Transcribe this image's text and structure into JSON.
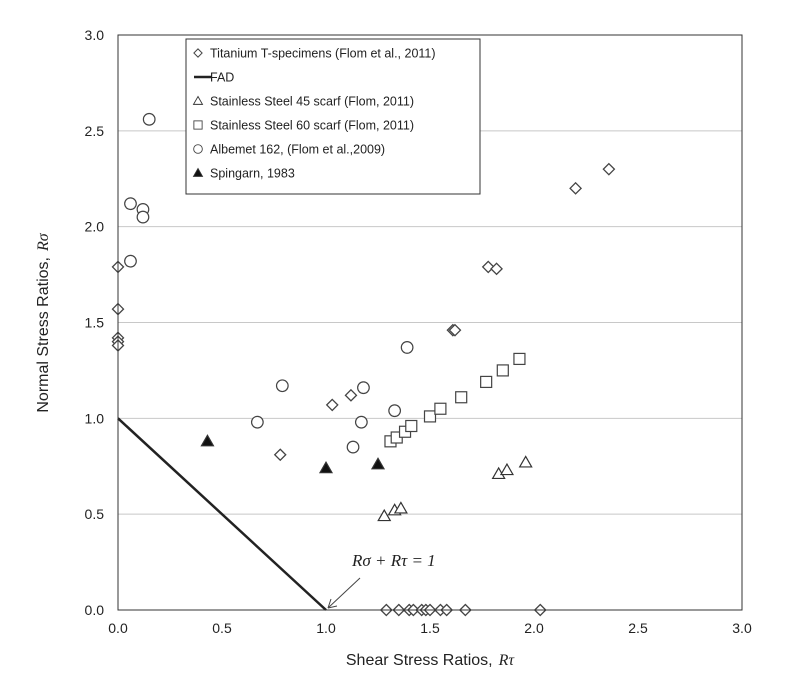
{
  "chart_data": {
    "type": "scatter",
    "xlabel": "Shear Stress Ratios,",
    "xlabel_symbol": "Rτ",
    "ylabel": "Normal Stress Ratios,",
    "ylabel_symbol": "Rσ",
    "xlim": [
      0.0,
      3.0
    ],
    "ylim": [
      0.0,
      3.0
    ],
    "xticks": [
      "0.0",
      "0.5",
      "1.0",
      "1.5",
      "2.0",
      "2.5",
      "3.0"
    ],
    "yticks": [
      "0.0",
      "0.5",
      "1.0",
      "1.5",
      "2.0",
      "2.5",
      "3.0"
    ],
    "grid": "horizontal",
    "legend_position": "top-left",
    "annotation": {
      "text": "Rσ + Rτ = 1",
      "points_to": [
        1.0,
        0.0
      ]
    },
    "series": [
      {
        "name": "Titanium T-specimens (Flom et al., 2011)",
        "marker": "diamond-open",
        "points": [
          [
            0.0,
            1.79
          ],
          [
            0.0,
            1.57
          ],
          [
            0.0,
            1.42
          ],
          [
            0.0,
            1.4
          ],
          [
            0.0,
            1.38
          ],
          [
            0.78,
            0.81
          ],
          [
            1.03,
            1.07
          ],
          [
            1.12,
            1.12
          ],
          [
            1.61,
            1.46
          ],
          [
            1.62,
            1.46
          ],
          [
            1.78,
            1.79
          ],
          [
            1.82,
            1.78
          ],
          [
            2.2,
            2.2
          ],
          [
            2.36,
            2.3
          ],
          [
            1.29,
            0.0
          ],
          [
            1.35,
            0.0
          ],
          [
            1.4,
            0.0
          ],
          [
            1.42,
            0.0
          ],
          [
            1.46,
            0.0
          ],
          [
            1.48,
            0.0
          ],
          [
            1.5,
            0.0
          ],
          [
            1.55,
            0.0
          ],
          [
            1.58,
            0.0
          ],
          [
            1.67,
            0.0
          ],
          [
            2.03,
            0.0
          ]
        ]
      },
      {
        "name": "FAD",
        "marker": "line",
        "points": [
          [
            0.0,
            1.0
          ],
          [
            1.0,
            0.0
          ]
        ]
      },
      {
        "name": "Stainless Steel 45 scarf (Flom, 2011)",
        "marker": "triangle-open",
        "points": [
          [
            1.28,
            0.49
          ],
          [
            1.33,
            0.52
          ],
          [
            1.36,
            0.53
          ],
          [
            1.83,
            0.71
          ],
          [
            1.87,
            0.73
          ],
          [
            1.96,
            0.77
          ]
        ]
      },
      {
        "name": "Stainless Steel 60 scarf (Flom, 2011)",
        "marker": "square-open",
        "points": [
          [
            1.31,
            0.88
          ],
          [
            1.34,
            0.9
          ],
          [
            1.38,
            0.93
          ],
          [
            1.41,
            0.96
          ],
          [
            1.5,
            1.01
          ],
          [
            1.55,
            1.05
          ],
          [
            1.65,
            1.11
          ],
          [
            1.77,
            1.19
          ],
          [
            1.85,
            1.25
          ],
          [
            1.93,
            1.31
          ]
        ]
      },
      {
        "name": "Albemet 162, (Flom et al.,2009)",
        "marker": "circle-open",
        "points": [
          [
            0.06,
            2.12
          ],
          [
            0.12,
            2.09
          ],
          [
            0.12,
            2.05
          ],
          [
            0.15,
            2.56
          ],
          [
            0.06,
            1.82
          ],
          [
            0.67,
            0.98
          ],
          [
            0.79,
            1.17
          ],
          [
            1.13,
            0.85
          ],
          [
            1.17,
            0.98
          ],
          [
            1.18,
            1.16
          ],
          [
            1.33,
            1.04
          ],
          [
            1.39,
            1.37
          ]
        ]
      },
      {
        "name": "Spingarn, 1983",
        "marker": "triangle-filled",
        "points": [
          [
            0.43,
            0.88
          ],
          [
            1.0,
            0.74
          ],
          [
            1.25,
            0.76
          ]
        ]
      }
    ]
  }
}
